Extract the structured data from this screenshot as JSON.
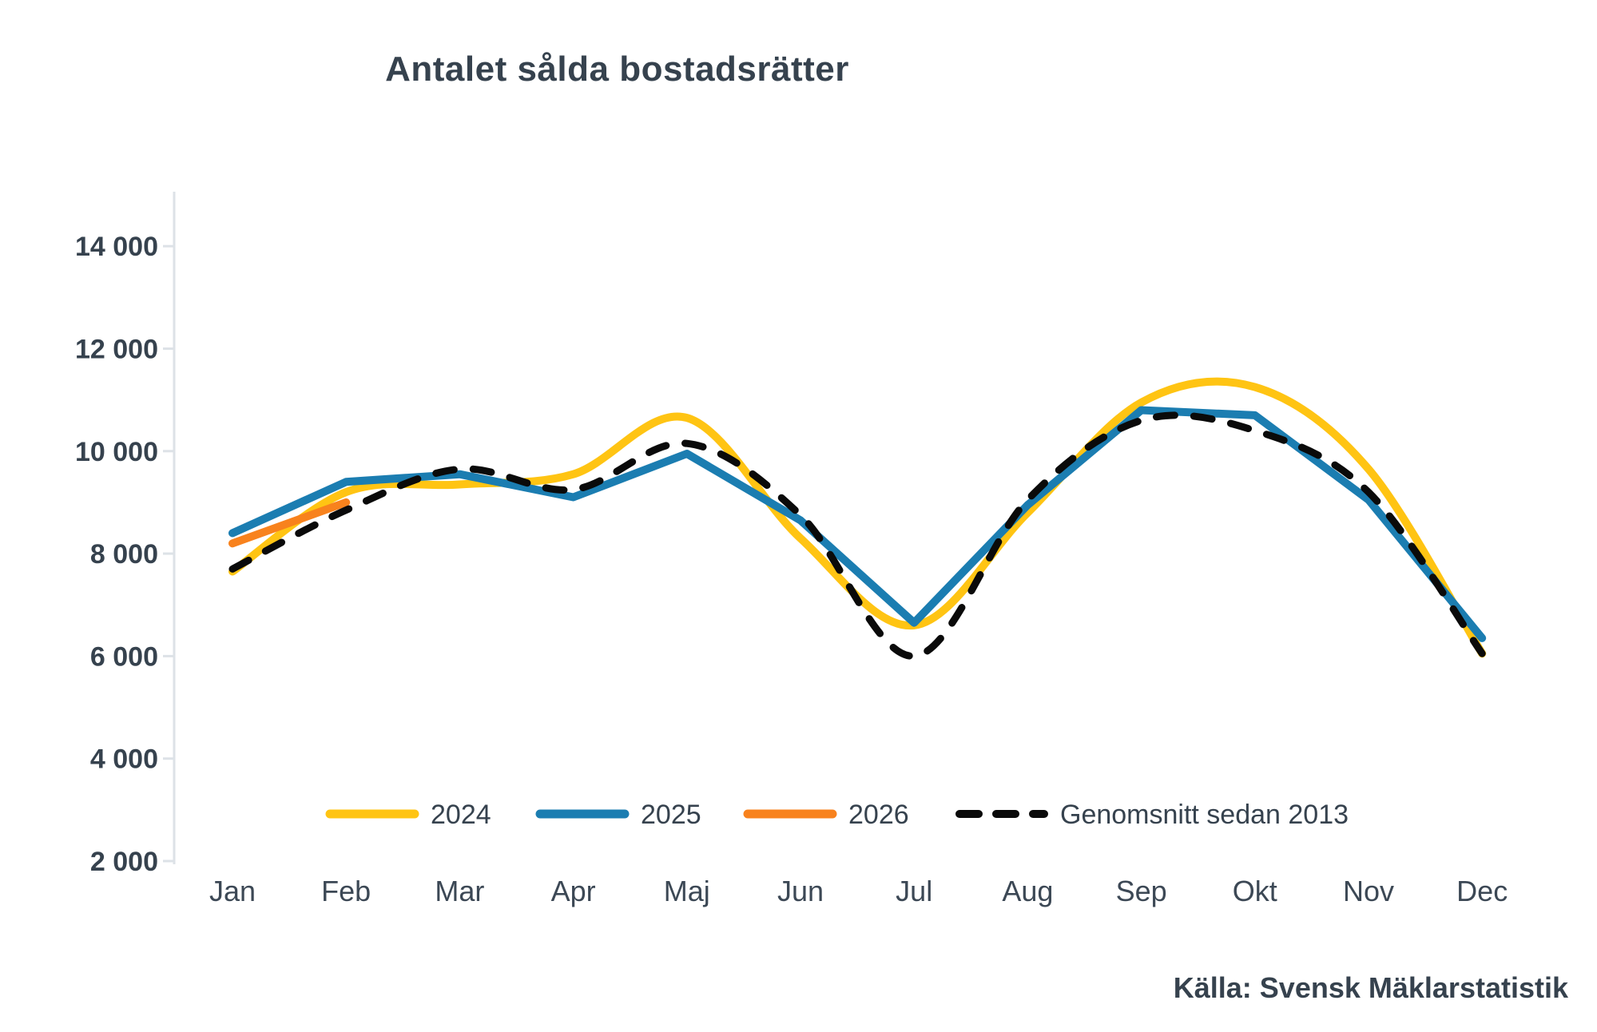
{
  "title": "Antalet sålda bostadsrätter",
  "source": "Källa: Svensk Mäklarstatistik",
  "colors": {
    "series_2024": "#FFC413",
    "series_2025": "#1B7DB1",
    "series_2026": "#F8821D",
    "series_average": "#0A0A0A",
    "text": "#36424E",
    "axis": "#DDE2E7",
    "background": "#FFFFFF"
  },
  "chart_data": {
    "type": "line",
    "title": "Antalet sålda bostadsrätter",
    "categories": [
      "Jan",
      "Feb",
      "Mar",
      "Apr",
      "Maj",
      "Jun",
      "Jul",
      "Aug",
      "Sep",
      "Okt",
      "Nov",
      "Dec"
    ],
    "series": [
      {
        "name": "2024",
        "color": "#FFC413",
        "style": "solid",
        "smooth": true,
        "values": [
          7650,
          9200,
          9350,
          9550,
          10650,
          8300,
          6600,
          8800,
          10950,
          11250,
          9650,
          6050
        ]
      },
      {
        "name": "2025",
        "color": "#1B7DB1",
        "style": "solid",
        "smooth": false,
        "values": [
          8400,
          9400,
          9550,
          9100,
          9950,
          8650,
          6650,
          8950,
          10800,
          10700,
          9050,
          6350
        ]
      },
      {
        "name": "2026",
        "color": "#F8821D",
        "style": "solid",
        "smooth": true,
        "values": [
          8200,
          9000,
          null,
          null,
          null,
          null,
          null,
          null,
          null,
          null,
          null,
          null
        ]
      },
      {
        "name": "Genomsnitt sedan 2013",
        "color": "#0A0A0A",
        "style": "dashed",
        "smooth": true,
        "values": [
          7700,
          8850,
          9650,
          9250,
          10150,
          8750,
          6000,
          9050,
          10600,
          10400,
          9200,
          6050
        ]
      }
    ],
    "xlabel": "",
    "ylabel": "",
    "ylim": [
      2000,
      14000
    ],
    "yticks": [
      2000,
      4000,
      6000,
      8000,
      10000,
      12000,
      14000
    ],
    "ytick_labels": [
      "2 000",
      "4 000",
      "6 000",
      "8 000",
      "10 000",
      "12 000",
      "14 000"
    ],
    "grid": false,
    "legend_position": "bottom"
  }
}
